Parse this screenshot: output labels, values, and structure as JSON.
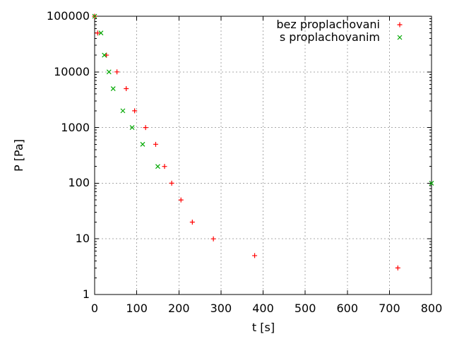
{
  "figure": {
    "background": "#ffffff",
    "border_color": "#000000",
    "grid_color": "#a8a8a8",
    "text_color": "#000000"
  },
  "chart_data": {
    "type": "scatter",
    "title": "",
    "xlabel": "t [s]",
    "ylabel": "P [Pa]",
    "grid": true,
    "legend_position": "top-right-inside",
    "x_axis": {
      "scale": "linear",
      "min": 0,
      "max": 800,
      "ticks": [
        0,
        100,
        200,
        300,
        400,
        500,
        600,
        700,
        800
      ]
    },
    "y_axis": {
      "scale": "log",
      "min": 1,
      "max": 100000,
      "ticks": [
        1,
        10,
        100,
        1000,
        10000,
        100000
      ],
      "tick_labels": [
        "1",
        "10",
        "100",
        "1000",
        "10000",
        "100000"
      ]
    },
    "series": [
      {
        "name": "bez proplachovani",
        "marker": "plus",
        "color": "#ff0000",
        "points": [
          [
            0,
            100000
          ],
          [
            7,
            50000
          ],
          [
            28,
            20000
          ],
          [
            53,
            10000
          ],
          [
            75,
            5000
          ],
          [
            95,
            2000
          ],
          [
            121,
            1000
          ],
          [
            145,
            500
          ],
          [
            166,
            200
          ],
          [
            183,
            100
          ],
          [
            205,
            50
          ],
          [
            232,
            20
          ],
          [
            282,
            10
          ],
          [
            380,
            5
          ],
          [
            720,
            3
          ]
        ]
      },
      {
        "name": "s proplachovanim",
        "marker": "cross",
        "color": "#00a800",
        "points": [
          [
            0,
            100000
          ],
          [
            15,
            50000
          ],
          [
            23,
            20000
          ],
          [
            34,
            10000
          ],
          [
            44,
            5000
          ],
          [
            67,
            2000
          ],
          [
            89,
            1000
          ],
          [
            114,
            500
          ],
          [
            150,
            200
          ],
          [
            800,
            100
          ]
        ]
      }
    ]
  }
}
